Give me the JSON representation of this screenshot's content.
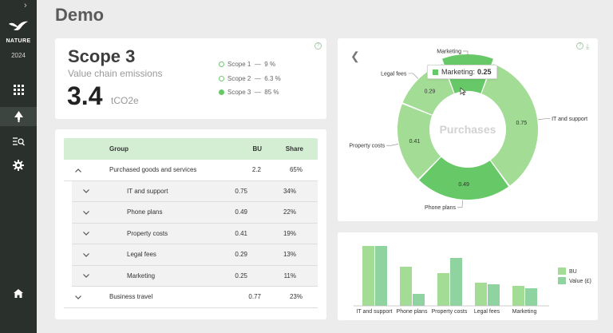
{
  "app": {
    "brand": "NATURE",
    "year": "2024",
    "page_title": "Demo",
    "sidebar_toggle": "chevron-right-icon",
    "nav_icons": [
      "grid-icon",
      "tree-icon",
      "list-search-icon",
      "gear-icon",
      "home-icon"
    ],
    "accent_color": "#66c866"
  },
  "scope_card": {
    "title": "Scope 3",
    "subtitle": "Value chain emissions",
    "value": "3.4",
    "unit": "tCO2e",
    "legend": [
      {
        "label": "Scope 1",
        "sep": "—",
        "value": "9 %",
        "selected": false
      },
      {
        "label": "Scope 2",
        "sep": "—",
        "value": "6.3 %",
        "selected": false
      },
      {
        "label": "Scope 3",
        "sep": "—",
        "value": "85 %",
        "selected": true
      }
    ]
  },
  "table": {
    "headers": {
      "group": "Group",
      "bu": "BU",
      "share": "Share"
    },
    "rows": [
      {
        "group": "Purchased goods and services",
        "bu": "2.2",
        "share": "65%",
        "level": 0,
        "expanded": true
      },
      {
        "group": "IT and support",
        "bu": "0.75",
        "share": "34%",
        "level": 1
      },
      {
        "group": "Phone plans",
        "bu": "0.49",
        "share": "22%",
        "level": 1
      },
      {
        "group": "Property costs",
        "bu": "0.41",
        "share": "19%",
        "level": 1
      },
      {
        "group": "Legal fees",
        "bu": "0.29",
        "share": "13%",
        "level": 1
      },
      {
        "group": "Marketing",
        "bu": "0.25",
        "share": "11%",
        "level": 1
      },
      {
        "group": "Business travel",
        "bu": "0.77",
        "share": "23%",
        "level": 0,
        "expanded": false
      }
    ]
  },
  "donut": {
    "center_label": "Purchases",
    "tooltip": {
      "label": "Marketing:",
      "value": "0.25"
    }
  },
  "chart_data": [
    {
      "type": "pie",
      "title": "Purchases",
      "categories": [
        "IT and support",
        "Phone plans",
        "Property costs",
        "Legal fees",
        "Marketing"
      ],
      "values": [
        0.75,
        0.49,
        0.41,
        0.29,
        0.25
      ],
      "colors": [
        "#a3dc95",
        "#66c866",
        "#a3dc95",
        "#a3dc95",
        "#66c866"
      ]
    },
    {
      "type": "bar",
      "categories": [
        "IT and support",
        "Phone plans",
        "Property costs",
        "Legal fees",
        "Marketing"
      ],
      "series": [
        {
          "name": "BU",
          "values": [
            0.75,
            0.49,
            0.41,
            0.29,
            0.25
          ],
          "color": "#a3dc95"
        },
        {
          "name": "Value (£)",
          "values": [
            0.75,
            0.15,
            0.6,
            0.27,
            0.22
          ],
          "color": "#8ed3a0"
        }
      ],
      "legend_position": "right"
    }
  ]
}
